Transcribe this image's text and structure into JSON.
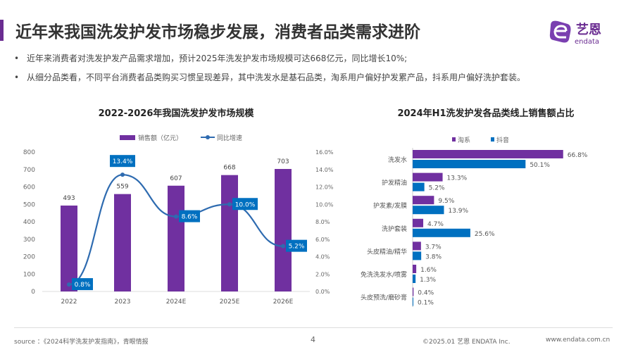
{
  "header": {
    "title": "近年来我国洗发护发市场稳步发展，消费者品类需求进阶",
    "logo_text": "艺恩",
    "logo_sub": "endata"
  },
  "bullets": [
    "近年来消费者对洗发护发产品需求增加，预计2025年洗发护发市场规模可达668亿元，同比增长10%;",
    "从细分品类看，不同平台消费者品类购买习惯呈现差异，其中洗发水是基石品类，淘系用户偏好护发累产品，抖系用户偏好洗护套装。"
  ],
  "colors": {
    "accent": "#6a2c91",
    "purple": "#7030a0",
    "blue": "#0070c0",
    "line": "#2e6bb0"
  },
  "chart_data": [
    {
      "type": "bar+line",
      "title": "2022-2026年我国洗发护发市场规模",
      "categories": [
        "2022",
        "2023",
        "2024E",
        "2025E",
        "2026E"
      ],
      "series": [
        {
          "name": "销售额（亿元）",
          "type": "bar",
          "values": [
            493,
            559,
            607,
            668,
            703
          ],
          "labels": [
            "493",
            "559",
            "607",
            "668",
            "703"
          ]
        },
        {
          "name": "同比增速",
          "type": "line",
          "axis": "right",
          "values": [
            0.8,
            13.4,
            8.6,
            10.0,
            5.2
          ],
          "labels": [
            "0.8%",
            "13.4%",
            "8.6%",
            "10.0%",
            "5.2%"
          ]
        }
      ],
      "ylim": [
        0,
        800
      ],
      "yticks": [
        "0",
        "100",
        "200",
        "300",
        "400",
        "500",
        "600",
        "700",
        "800"
      ],
      "y2lim": [
        0,
        16
      ],
      "y2ticks": [
        "0.0%",
        "2.0%",
        "4.0%",
        "6.0%",
        "8.0%",
        "10.0%",
        "12.0%",
        "14.0%",
        "16.0%"
      ],
      "legend": "top"
    },
    {
      "type": "bar",
      "orientation": "horizontal",
      "title": "2024年H1洗发护发各品类线上销售额占比",
      "categories": [
        "洗发水",
        "护发精油",
        "护发素/发膜",
        "洗护套装",
        "头皮精油/精华",
        "免洗洗发水/喷雾",
        "头皮预洗/磨砂膏"
      ],
      "series": [
        {
          "name": "淘系",
          "values": [
            66.8,
            13.3,
            9.5,
            4.7,
            3.7,
            1.6,
            0.4
          ],
          "labels": [
            "66.8%",
            "13.3%",
            "9.5%",
            "4.7%",
            "3.7%",
            "1.6%",
            "0.4%"
          ]
        },
        {
          "name": "抖音",
          "values": [
            50.1,
            5.2,
            13.9,
            25.6,
            3.8,
            1.3,
            0.1
          ],
          "labels": [
            "50.1%",
            "5.2%",
            "13.9%",
            "25.6%",
            "3.8%",
            "1.3%",
            "0.1%"
          ]
        }
      ],
      "legend": "top"
    }
  ],
  "footer": {
    "source": "source ：《2024科学洗发护发指南》，青眼情报",
    "page": "4",
    "copyright": "©2025.01 艺恩 ENDATA Inc.",
    "website": "www.endata.com.cn"
  }
}
